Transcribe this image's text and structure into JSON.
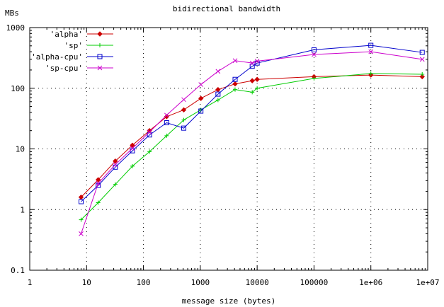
{
  "chart_data": {
    "type": "line",
    "title": "bidirectional bandwidth",
    "xlabel": "message size (bytes)",
    "ylabel": "MBs",
    "xscale": "log",
    "yscale": "log",
    "xlim": [
      1,
      10000000
    ],
    "ylim": [
      0.1,
      1000
    ],
    "x_ticks": [
      1,
      10,
      100,
      1000,
      10000,
      100000,
      1000000,
      10000000
    ],
    "x_tick_labels": [
      "1",
      "10",
      "100",
      "1000",
      "10000",
      "100000",
      "1e+06",
      "1e+07"
    ],
    "y_ticks": [
      0.1,
      1,
      10,
      100,
      1000
    ],
    "y_tick_labels": [
      "0.1",
      "1",
      "10",
      "100",
      "1000"
    ],
    "grid": true,
    "legend_position": "top-left",
    "series": [
      {
        "name": "'alpha'",
        "color": "#cc0000",
        "marker": "diamond",
        "x": [
          8,
          16,
          32,
          64,
          128,
          256,
          512,
          1024,
          2048,
          4096,
          8192,
          10000,
          100000,
          1000000,
          8000000
        ],
        "y": [
          1.6,
          3.1,
          6.3,
          11.5,
          20,
          34,
          44,
          68,
          95,
          118,
          133,
          140,
          155,
          165,
          155
        ]
      },
      {
        "name": "'sp'",
        "color": "#00cc00",
        "marker": "plus",
        "x": [
          8,
          16,
          32,
          64,
          128,
          256,
          512,
          1024,
          2048,
          4096,
          8192,
          10000,
          100000,
          1000000,
          8000000
        ],
        "y": [
          0.68,
          1.3,
          2.6,
          5.2,
          9,
          16.5,
          30,
          44,
          64,
          95,
          86,
          100,
          145,
          175,
          170
        ]
      },
      {
        "name": "'alpha-cpu'",
        "color": "#0000cc",
        "marker": "square",
        "x": [
          8,
          16,
          32,
          64,
          128,
          256,
          512,
          1024,
          2048,
          4096,
          8192,
          10000,
          100000,
          1000000,
          8000000
        ],
        "y": [
          1.35,
          2.5,
          5,
          9.3,
          17,
          27,
          22,
          42,
          80,
          140,
          230,
          260,
          430,
          510,
          390
        ]
      },
      {
        "name": "'sp-cpu'",
        "color": "#cc00cc",
        "marker": "cross",
        "x": [
          8,
          16,
          32,
          64,
          128,
          256,
          512,
          1024,
          2048,
          4096,
          8192,
          10000,
          100000,
          1000000,
          8000000
        ],
        "y": [
          0.4,
          2.7,
          5.5,
          10.2,
          19,
          36,
          65,
          115,
          190,
          285,
          260,
          280,
          360,
          400,
          300
        ]
      }
    ]
  }
}
